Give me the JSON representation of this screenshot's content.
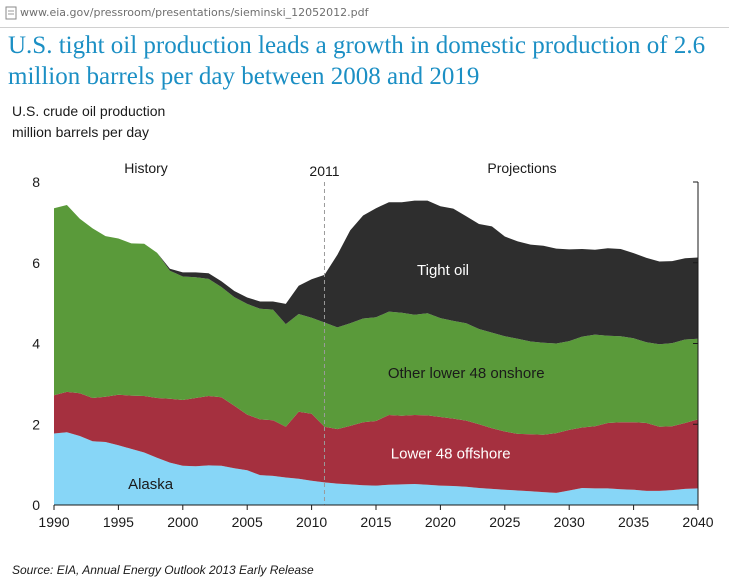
{
  "browser": {
    "url": "www.eia.gov/pressroom/presentations/sieminski_12052012.pdf"
  },
  "title": "U.S. tight oil production leads a growth in domestic production of 2.6 million barrels per day between 2008 and 2019",
  "chart_data": {
    "type": "area",
    "stacked": true,
    "ylabel_line1": "U.S. crude oil production",
    "ylabel_line2": "million barrels per day",
    "xlim": [
      1990,
      2040
    ],
    "ylim": [
      0,
      8
    ],
    "xticks": [
      1990,
      1995,
      2000,
      2005,
      2010,
      2015,
      2020,
      2025,
      2030,
      2035,
      2040
    ],
    "yticks": [
      0,
      2,
      4,
      6,
      8
    ],
    "grid": false,
    "divider": {
      "x": 2011,
      "label": "2011"
    },
    "region_labels": {
      "history": "History",
      "projections": "Projections"
    },
    "x": [
      1990,
      1991,
      1992,
      1993,
      1994,
      1995,
      1996,
      1997,
      1998,
      1999,
      2000,
      2001,
      2002,
      2003,
      2004,
      2005,
      2006,
      2007,
      2008,
      2009,
      2010,
      2011,
      2012,
      2013,
      2014,
      2015,
      2016,
      2017,
      2018,
      2019,
      2020,
      2021,
      2022,
      2023,
      2024,
      2025,
      2026,
      2027,
      2028,
      2029,
      2030,
      2031,
      2032,
      2033,
      2034,
      2035,
      2036,
      2037,
      2038,
      2039,
      2040
    ],
    "series": [
      {
        "name": "Alaska",
        "color": "#87d6f7",
        "values": [
          1.77,
          1.8,
          1.71,
          1.58,
          1.56,
          1.48,
          1.39,
          1.3,
          1.17,
          1.05,
          0.97,
          0.96,
          0.98,
          0.97,
          0.91,
          0.86,
          0.74,
          0.72,
          0.68,
          0.65,
          0.6,
          0.56,
          0.53,
          0.51,
          0.49,
          0.48,
          0.5,
          0.51,
          0.52,
          0.5,
          0.48,
          0.47,
          0.45,
          0.42,
          0.4,
          0.38,
          0.36,
          0.34,
          0.32,
          0.3,
          0.36,
          0.42,
          0.41,
          0.41,
          0.39,
          0.38,
          0.35,
          0.35,
          0.37,
          0.4,
          0.41
        ]
      },
      {
        "name": "Lower 48 offshore",
        "color": "#a5303f",
        "values": [
          0.95,
          1.0,
          1.06,
          1.07,
          1.12,
          1.25,
          1.32,
          1.4,
          1.48,
          1.58,
          1.63,
          1.69,
          1.72,
          1.7,
          1.55,
          1.38,
          1.38,
          1.38,
          1.26,
          1.66,
          1.66,
          1.38,
          1.35,
          1.45,
          1.56,
          1.6,
          1.73,
          1.7,
          1.71,
          1.72,
          1.7,
          1.67,
          1.64,
          1.58,
          1.5,
          1.44,
          1.4,
          1.41,
          1.42,
          1.48,
          1.5,
          1.5,
          1.54,
          1.62,
          1.66,
          1.67,
          1.68,
          1.59,
          1.58,
          1.63,
          1.71
        ]
      },
      {
        "name": "Other lower 48 onshore",
        "color": "#5a9a3a",
        "values": [
          4.63,
          4.63,
          4.32,
          4.2,
          3.98,
          3.87,
          3.77,
          3.77,
          3.6,
          3.17,
          3.06,
          2.99,
          2.9,
          2.73,
          2.69,
          2.74,
          2.74,
          2.74,
          2.54,
          2.42,
          2.38,
          2.58,
          2.52,
          2.54,
          2.57,
          2.57,
          2.56,
          2.55,
          2.48,
          2.53,
          2.45,
          2.42,
          2.41,
          2.36,
          2.37,
          2.36,
          2.36,
          2.3,
          2.28,
          2.22,
          2.2,
          2.25,
          2.27,
          2.16,
          2.13,
          2.08,
          2.0,
          2.04,
          2.06,
          2.07,
          2.0
        ]
      },
      {
        "name": "Tight oil",
        "color": "#2e2e2e",
        "values": [
          0.0,
          0.0,
          0.0,
          0.0,
          0.0,
          0.0,
          0.0,
          0.0,
          0.0,
          0.05,
          0.1,
          0.12,
          0.14,
          0.14,
          0.15,
          0.16,
          0.18,
          0.2,
          0.5,
          0.7,
          0.95,
          1.18,
          1.8,
          2.3,
          2.55,
          2.7,
          2.71,
          2.74,
          2.83,
          2.79,
          2.77,
          2.78,
          2.65,
          2.6,
          2.63,
          2.47,
          2.41,
          2.4,
          2.4,
          2.35,
          2.27,
          2.17,
          2.1,
          2.17,
          2.16,
          2.11,
          2.09,
          2.05,
          2.03,
          2.01,
          2.01
        ]
      }
    ],
    "area_labels": [
      {
        "text": "Tight oil",
        "x": 2020.2,
        "y": 5.7,
        "color": "#ffffff"
      },
      {
        "text": "Other lower 48 onshore",
        "x": 2022.0,
        "y": 3.15,
        "color": "#1a1a1a"
      },
      {
        "text": "Lower 48 offshore",
        "x": 2020.8,
        "y": 1.15,
        "color": "#ffffff"
      },
      {
        "text": "Alaska",
        "x": 1997.5,
        "y": 0.4,
        "color": "#1a1a1a"
      }
    ]
  },
  "source": "Source:  EIA, Annual Energy Outlook 2013 Early Release"
}
